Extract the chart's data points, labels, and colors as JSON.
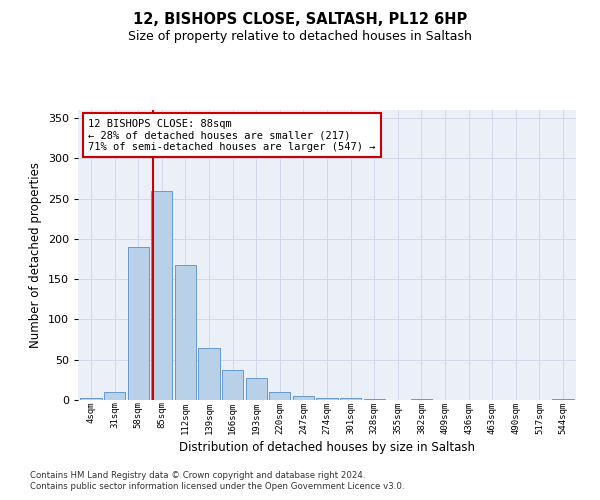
{
  "title1": "12, BISHOPS CLOSE, SALTASH, PL12 6HP",
  "title2": "Size of property relative to detached houses in Saltash",
  "xlabel": "Distribution of detached houses by size in Saltash",
  "ylabel": "Number of detached properties",
  "bin_labels": [
    "4sqm",
    "31sqm",
    "58sqm",
    "85sqm",
    "112sqm",
    "139sqm",
    "166sqm",
    "193sqm",
    "220sqm",
    "247sqm",
    "274sqm",
    "301sqm",
    "328sqm",
    "355sqm",
    "382sqm",
    "409sqm",
    "436sqm",
    "463sqm",
    "490sqm",
    "517sqm",
    "544sqm"
  ],
  "bar_heights": [
    2,
    10,
    190,
    260,
    168,
    65,
    37,
    27,
    10,
    5,
    3,
    3,
    1,
    0,
    1,
    0,
    0,
    0,
    0,
    0,
    1
  ],
  "bar_color": "#b8d0e8",
  "bar_edge_color": "#6699cc",
  "vline_color": "#cc0000",
  "annotation_text": "12 BISHOPS CLOSE: 88sqm\n← 28% of detached houses are smaller (217)\n71% of semi-detached houses are larger (547) →",
  "annotation_box_color": "#ffffff",
  "annotation_box_edge_color": "#cc0000",
  "ylim": [
    0,
    360
  ],
  "yticks": [
    0,
    50,
    100,
    150,
    200,
    250,
    300,
    350
  ],
  "grid_color": "#d0d8ea",
  "bg_color": "#eaeff8",
  "footer1": "Contains HM Land Registry data © Crown copyright and database right 2024.",
  "footer2": "Contains public sector information licensed under the Open Government Licence v3.0."
}
